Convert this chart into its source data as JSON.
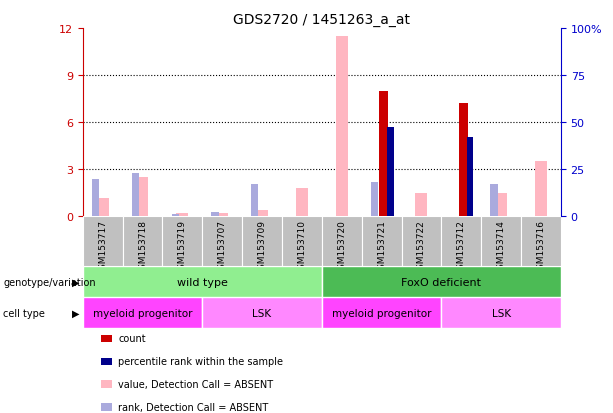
{
  "title": "GDS2720 / 1451263_a_at",
  "samples": [
    "GSM153717",
    "GSM153718",
    "GSM153719",
    "GSM153707",
    "GSM153709",
    "GSM153710",
    "GSM153720",
    "GSM153721",
    "GSM153722",
    "GSM153712",
    "GSM153714",
    "GSM153716"
  ],
  "ylim_left": [
    0,
    12
  ],
  "ylim_right": [
    0,
    100
  ],
  "yticks_left": [
    0,
    3,
    6,
    9,
    12
  ],
  "yticks_right": [
    0,
    25,
    50,
    75,
    100
  ],
  "ytick_labels_right": [
    "0",
    "25",
    "50",
    "75",
    "100%"
  ],
  "count_values": [
    0,
    0,
    0,
    0,
    0,
    0,
    0,
    8.0,
    0,
    7.2,
    0,
    0
  ],
  "rank_values": [
    0,
    0,
    0,
    0,
    0,
    0,
    0,
    47.5,
    0,
    42.0,
    0,
    0
  ],
  "absent_value_values": [
    1.2,
    2.5,
    0.2,
    0.2,
    0.4,
    1.8,
    11.5,
    0,
    1.5,
    0,
    1.5,
    3.5
  ],
  "absent_rank_values": [
    20,
    23,
    1.5,
    2.5,
    17,
    0,
    0,
    18.5,
    0,
    0,
    17.0,
    0
  ],
  "genotype_groups": [
    {
      "label": "wild type",
      "start": 0,
      "end": 6,
      "color": "#90EE90"
    },
    {
      "label": "FoxO deficient",
      "start": 6,
      "end": 12,
      "color": "#4CBB55"
    }
  ],
  "cell_type_groups": [
    {
      "label": "myeloid progenitor",
      "start": 0,
      "end": 3,
      "color": "#FF44FF"
    },
    {
      "label": "LSK",
      "start": 3,
      "end": 6,
      "color": "#FF88FF"
    },
    {
      "label": "myeloid progenitor",
      "start": 6,
      "end": 9,
      "color": "#FF44FF"
    },
    {
      "label": "LSK",
      "start": 9,
      "end": 12,
      "color": "#FF88FF"
    }
  ],
  "count_color": "#CC0000",
  "rank_color": "#00008B",
  "absent_value_color": "#FFB6C1",
  "absent_rank_color": "#AAAADD",
  "grid_color": "#000000",
  "sample_box_color": "#C0C0C0",
  "left_axis_color": "#CC0000",
  "right_axis_color": "#0000CC"
}
